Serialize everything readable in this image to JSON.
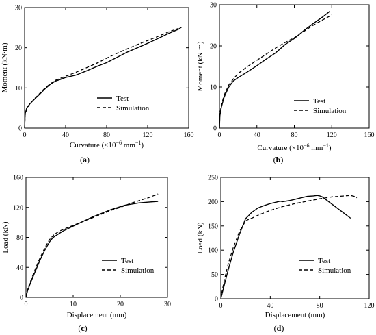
{
  "chart_data": [
    {
      "type": "line",
      "caption": {
        "open": "(",
        "letter": "a",
        "close": ")"
      },
      "xlabel": {
        "main": "Curvature (×10",
        "sup": "−6",
        "tail": " mm",
        "sup2": "−1",
        "end": ")"
      },
      "ylabel": "Moment (kN·m)",
      "xlim": [
        0,
        160
      ],
      "ylim": [
        0,
        30
      ],
      "xticks": [
        0,
        40,
        80,
        120,
        160
      ],
      "yticks": [
        0,
        10,
        20,
        30
      ],
      "legend_position": "bottom-right",
      "series": [
        {
          "name": "Test",
          "style": "solid",
          "x": [
            0,
            0.5,
            2,
            5,
            10,
            15,
            20,
            25,
            30,
            35,
            40,
            50,
            60,
            70,
            80,
            90,
            100,
            110,
            120,
            130,
            140,
            150,
            153
          ],
          "y": [
            0,
            3.5,
            5,
            6,
            7.3,
            8.5,
            9.8,
            10.9,
            11.7,
            12.1,
            12.6,
            13.2,
            14.2,
            15.3,
            16.3,
            17.6,
            18.9,
            20,
            21.1,
            22.3,
            23.5,
            24.6,
            25.1
          ]
        },
        {
          "name": "Simulation",
          "style": "dashed",
          "x": [
            0,
            0.5,
            2,
            5,
            10,
            15,
            20,
            25,
            30,
            40,
            50,
            60,
            70,
            80,
            90,
            100,
            110,
            120,
            130,
            140,
            150
          ],
          "y": [
            0,
            3.2,
            4.7,
            6,
            7.4,
            8.7,
            10,
            11,
            11.9,
            12.9,
            13.9,
            15,
            16.1,
            17.4,
            18.6,
            19.7,
            20.8,
            21.8,
            22.8,
            23.9,
            24.8
          ]
        }
      ]
    },
    {
      "type": "line",
      "caption": {
        "open": "(",
        "letter": "b",
        "close": ")"
      },
      "xlabel": {
        "main": "Curvature (×10",
        "sup": "−6",
        "tail": " mm",
        "sup2": "−1",
        "end": ")"
      },
      "ylabel": "Moment (kN·m)",
      "xlim": [
        0,
        160
      ],
      "ylim": [
        0,
        30
      ],
      "xticks": [
        0,
        40,
        80,
        120,
        160
      ],
      "yticks": [
        0,
        10,
        20,
        30
      ],
      "legend_position": "bottom-right",
      "series": [
        {
          "name": "Test",
          "style": "solid",
          "x": [
            0,
            0.5,
            2,
            5,
            10,
            15,
            20,
            30,
            40,
            50,
            60,
            70,
            80,
            90,
            100,
            110,
            118
          ],
          "y": [
            0,
            3,
            5,
            7.5,
            10,
            11.5,
            12.3,
            13.7,
            15.2,
            16.8,
            18.3,
            20.3,
            21.8,
            23.7,
            25.4,
            27,
            28.4
          ]
        },
        {
          "name": "Simulation",
          "style": "dashed",
          "x": [
            0,
            0.5,
            2,
            5,
            10,
            15,
            20,
            30,
            40,
            50,
            60,
            70,
            80,
            90,
            100,
            110,
            120
          ],
          "y": [
            0,
            3.5,
            5.5,
            8,
            10.5,
            12,
            13.3,
            15,
            16.5,
            18,
            19.5,
            20.8,
            22,
            23.5,
            25,
            26.3,
            27.5
          ]
        }
      ]
    },
    {
      "type": "line",
      "caption": {
        "open": "(",
        "letter": "c",
        "close": ")"
      },
      "xlabel": {
        "main": "Displacement (mm)"
      },
      "ylabel": "Load (kN)",
      "xlim": [
        0,
        30
      ],
      "ylim": [
        0,
        160
      ],
      "xticks": [
        0,
        10,
        20,
        30
      ],
      "yticks": [
        0,
        40,
        80,
        120,
        160
      ],
      "legend_position": "bottom-right",
      "series": [
        {
          "name": "Test",
          "style": "solid",
          "x": [
            0,
            0.3,
            1,
            2,
            3,
            4,
            5,
            5.5,
            6,
            7,
            8,
            10,
            12,
            14,
            16,
            18,
            20,
            21,
            22,
            24,
            26,
            28
          ],
          "y": [
            0,
            8,
            20,
            35,
            50,
            63,
            74,
            78,
            81,
            85,
            89,
            95,
            101,
            107,
            112,
            117,
            121,
            123,
            124,
            126,
            127,
            128
          ]
        },
        {
          "name": "Simulation",
          "style": "dashed",
          "x": [
            0,
            0.3,
            1,
            2,
            3,
            4,
            5,
            6,
            7,
            8,
            10,
            12,
            14,
            16,
            18,
            20,
            22,
            24,
            26,
            28
          ],
          "y": [
            0,
            10,
            22,
            38,
            53,
            66,
            77,
            84,
            88,
            91,
            96,
            101,
            106,
            111,
            116,
            120,
            125,
            129,
            133,
            138
          ]
        }
      ]
    },
    {
      "type": "line",
      "caption": {
        "open": "(",
        "letter": "d",
        "close": ")"
      },
      "xlabel": {
        "main": "Displacement (mm)"
      },
      "ylabel": "Load (kN)",
      "xlim": [
        0,
        120
      ],
      "ylim": [
        0,
        250
      ],
      "xticks": [
        0,
        40,
        80,
        120
      ],
      "yticks": [
        0,
        50,
        100,
        150,
        200,
        250
      ],
      "legend_position": "bottom-right",
      "series": [
        {
          "name": "Test",
          "style": "solid",
          "x": [
            0,
            1,
            3,
            6,
            10,
            15,
            20,
            22,
            25,
            30,
            35,
            40,
            45,
            48,
            50,
            55,
            60,
            65,
            70,
            75,
            78,
            80,
            82,
            105
          ],
          "y": [
            0,
            10,
            30,
            60,
            95,
            132,
            165,
            170,
            178,
            187,
            192,
            196,
            199,
            201,
            200,
            202,
            205,
            208,
            211,
            212,
            213,
            212,
            210,
            166
          ]
        },
        {
          "name": "Simulation",
          "style": "dashed",
          "x": [
            0,
            1,
            3,
            6,
            10,
            15,
            20,
            22,
            25,
            30,
            40,
            50,
            60,
            70,
            80,
            90,
            100,
            105,
            108,
            110
          ],
          "y": [
            0,
            15,
            40,
            72,
            105,
            138,
            160,
            163,
            166,
            172,
            182,
            190,
            196,
            201,
            206,
            210,
            212,
            213,
            211,
            208
          ]
        }
      ]
    }
  ]
}
